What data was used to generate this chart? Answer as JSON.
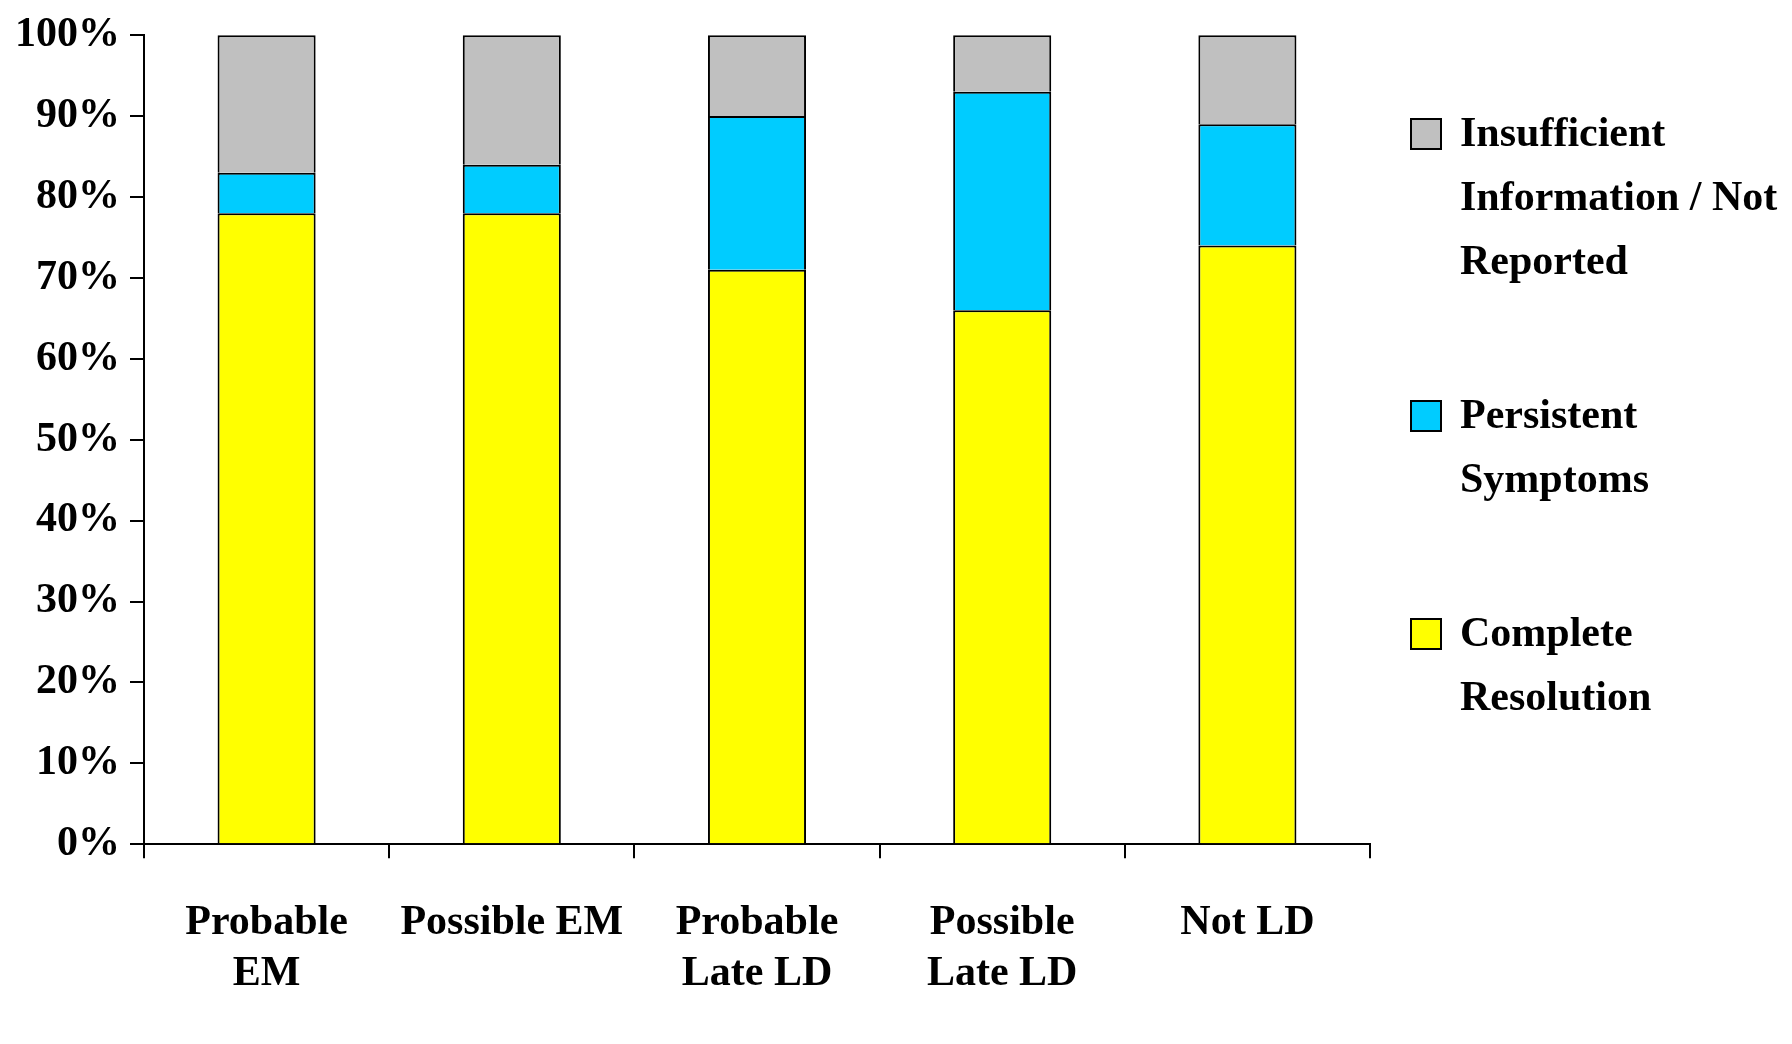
{
  "chart_data": {
    "type": "bar",
    "stacked": true,
    "categories": [
      "Probable EM",
      "Possible EM",
      "Probable Late LD",
      "Possible Late LD",
      "Not LD"
    ],
    "series": [
      {
        "name": "Complete Resolution",
        "color": "#ffff00",
        "values": [
          78,
          78,
          71,
          66,
          74
        ]
      },
      {
        "name": "Persistent Symptoms",
        "color": "#00ccff",
        "values": [
          5,
          6,
          19,
          27,
          15
        ]
      },
      {
        "name": "Insufficient Information / Not Reported",
        "color": "#c0c0c0",
        "values": [
          17,
          16,
          10,
          7,
          11
        ]
      }
    ],
    "ylim": [
      0,
      100
    ],
    "yticks": [
      {
        "value": 0,
        "label": "0%"
      },
      {
        "value": 10,
        "label": "10%"
      },
      {
        "value": 20,
        "label": "20%"
      },
      {
        "value": 30,
        "label": "30%"
      },
      {
        "value": 40,
        "label": "40%"
      },
      {
        "value": 50,
        "label": "50%"
      },
      {
        "value": 60,
        "label": "60%"
      },
      {
        "value": 70,
        "label": "70%"
      },
      {
        "value": 80,
        "label": "80%"
      },
      {
        "value": 90,
        "label": "90%"
      },
      {
        "value": 100,
        "label": "100%"
      }
    ],
    "grid": false,
    "legend": "right"
  }
}
